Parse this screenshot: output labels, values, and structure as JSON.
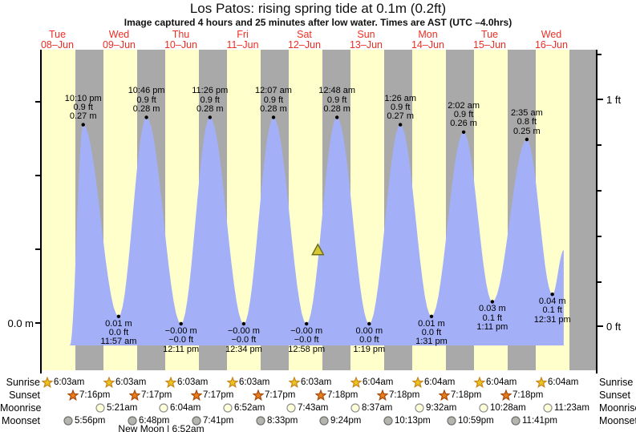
{
  "header": {
    "title": "Los Patos: rising  spring tide at 0.1m (0.2ft)",
    "subtitle": "Image captured 4 hours and 25 minutes after low water. Times are AST (UTC –4.0hrs)"
  },
  "days": [
    {
      "weekday": "Tue",
      "date": "08–Jun"
    },
    {
      "weekday": "Wed",
      "date": "09–Jun"
    },
    {
      "weekday": "Thu",
      "date": "10–Jun"
    },
    {
      "weekday": "Fri",
      "date": "11–Jun"
    },
    {
      "weekday": "Sat",
      "date": "12–Jun"
    },
    {
      "weekday": "Sun",
      "date": "13–Jun"
    },
    {
      "weekday": "Mon",
      "date": "14–Jun"
    },
    {
      "weekday": "Tue",
      "date": "15–Jun"
    },
    {
      "weekday": "Wed",
      "date": "16–Jun"
    }
  ],
  "axes": {
    "left_zero_label": "0.0 m",
    "right_one_ft": "1 ft",
    "right_zero_ft": "0 ft"
  },
  "colors": {
    "day_band": "#ffffcc",
    "night_band": "#a9a9a9",
    "tide_fill": "#a3b0f8",
    "date_text": "#ee2e24",
    "axis": "#000000",
    "sunrise_star_fill": "#e9c41c",
    "sunrise_star_stroke": "#c8831a",
    "sunset_star_fill": "#e97c17",
    "sunset_star_stroke": "#a34a0e",
    "moonrise_fill": "#ffffd8",
    "moonrise_stroke": "#8f8f8f",
    "moonset_fill": "#b5b5ad",
    "moonset_stroke": "#6f6f6f",
    "marker_fill": "#d6c832",
    "marker_stroke": "#6e6e1e"
  },
  "chart_data": {
    "type": "area",
    "title": "Los Patos: rising  spring tide at 0.1m (0.2ft)",
    "ylabel_left": "meters",
    "ylabel_right": "feet",
    "ylim_ft": [
      0,
      1
    ],
    "ylim_m_zero_label": "0.0 m",
    "day_categories": [
      "Tue 08-Jun",
      "Wed 09-Jun",
      "Thu 10-Jun",
      "Fri 11-Jun",
      "Sat 12-Jun",
      "Sun 13-Jun",
      "Mon 14-Jun",
      "Tue 15-Jun",
      "Wed 16-Jun"
    ],
    "sunrise_hour_decimal": 6.05,
    "sunset_hour_decimal": 19.28,
    "curve_start": {
      "day": 0,
      "hour": 17.0,
      "m": -0.03
    },
    "curve_end": {
      "day": 8,
      "hour": 16.93,
      "m": 0.1
    },
    "now_marker": {
      "day": 4,
      "hour": 17.38,
      "m": 0.085
    },
    "extremes": [
      {
        "kind": "high",
        "day": 0,
        "time": "10:10 pm",
        "ft": "0.9 ft",
        "m_label": "0.27 m",
        "m": 0.27
      },
      {
        "kind": "low",
        "day": 1,
        "time": "11:57 am",
        "ft": "0.0 ft",
        "m_label": "0.01 m",
        "m": 0.01
      },
      {
        "kind": "high",
        "day": 1,
        "time": "10:46 pm",
        "ft": "0.9 ft",
        "m_label": "0.28 m",
        "m": 0.28
      },
      {
        "kind": "low",
        "day": 2,
        "time": "12:11 pm",
        "ft": "−0.0 ft",
        "m_label": "−0.00 m",
        "m": 0.0
      },
      {
        "kind": "high",
        "day": 2,
        "time": "11:26 pm",
        "ft": "0.9 ft",
        "m_label": "0.28 m",
        "m": 0.28
      },
      {
        "kind": "low",
        "day": 3,
        "time": "12:34 pm",
        "ft": "−0.0 ft",
        "m_label": "−0.00 m",
        "m": 0.0
      },
      {
        "kind": "high",
        "day": 4,
        "time": "12:07 am",
        "ft": "0.9 ft",
        "m_label": "0.28 m",
        "m": 0.28
      },
      {
        "kind": "low",
        "day": 4,
        "time": "12:58 pm",
        "ft": "−0.0 ft",
        "m_label": "−0.00 m",
        "m": 0.0
      },
      {
        "kind": "high",
        "day": 5,
        "time": "12:48 am",
        "ft": "0.9 ft",
        "m_label": "0.28 m",
        "m": 0.28
      },
      {
        "kind": "low",
        "day": 5,
        "time": "1:19 pm",
        "ft": "0.0 ft",
        "m_label": "0.00 m",
        "m": 0.0
      },
      {
        "kind": "high",
        "day": 6,
        "time": "1:26 am",
        "ft": "0.9 ft",
        "m_label": "0.27 m",
        "m": 0.27
      },
      {
        "kind": "low",
        "day": 6,
        "time": "1:31 pm",
        "ft": "0.0 ft",
        "m_label": "0.01 m",
        "m": 0.01
      },
      {
        "kind": "high",
        "day": 7,
        "time": "2:02 am",
        "ft": "0.9 ft",
        "m_label": "0.26 m",
        "m": 0.26
      },
      {
        "kind": "low",
        "day": 7,
        "time": "1:11 pm",
        "ft": "0.1 ft",
        "m_label": "0.03 m",
        "m": 0.03
      },
      {
        "kind": "high",
        "day": 8,
        "time": "2:35 am",
        "ft": "0.8 ft",
        "m_label": "0.25 m",
        "m": 0.25
      },
      {
        "kind": "low",
        "day": 8,
        "time": "12:31 pm",
        "ft": "0.1 ft",
        "m_label": "0.04 m",
        "m": 0.04
      }
    ]
  },
  "astro": {
    "rows": [
      {
        "label": "Sunrise",
        "entries": [
          {
            "day": 0,
            "time": "6:03am"
          },
          {
            "day": 1,
            "time": "6:03am"
          },
          {
            "day": 2,
            "time": "6:03am"
          },
          {
            "day": 3,
            "time": "6:03am"
          },
          {
            "day": 4,
            "time": "6:03am"
          },
          {
            "day": 5,
            "time": "6:04am"
          },
          {
            "day": 6,
            "time": "6:04am"
          },
          {
            "day": 7,
            "time": "6:04am"
          },
          {
            "day": 8,
            "time": "6:04am"
          }
        ]
      },
      {
        "label": "Sunset",
        "entries": [
          {
            "day": 0,
            "time": "7:16pm"
          },
          {
            "day": 1,
            "time": "7:17pm"
          },
          {
            "day": 2,
            "time": "7:17pm"
          },
          {
            "day": 3,
            "time": "7:17pm"
          },
          {
            "day": 4,
            "time": "7:18pm"
          },
          {
            "day": 5,
            "time": "7:18pm"
          },
          {
            "day": 6,
            "time": "7:18pm"
          },
          {
            "day": 7,
            "time": "7:18pm"
          }
        ]
      },
      {
        "label": "Moonrise",
        "entries": [
          {
            "day": 1,
            "time": "5:21am"
          },
          {
            "day": 2,
            "time": "6:04am"
          },
          {
            "day": 3,
            "time": "6:52am"
          },
          {
            "day": 4,
            "time": "7:43am"
          },
          {
            "day": 5,
            "time": "8:37am"
          },
          {
            "day": 6,
            "time": "9:32am"
          },
          {
            "day": 7,
            "time": "10:28am"
          },
          {
            "day": 8,
            "time": "11:23am"
          }
        ]
      },
      {
        "label": "Moonset",
        "entries": [
          {
            "day": 0,
            "time": "5:56pm"
          },
          {
            "day": 1,
            "time": "6:48pm"
          },
          {
            "day": 2,
            "time": "7:41pm"
          },
          {
            "day": 3,
            "time": "8:33pm"
          },
          {
            "day": 4,
            "time": "9:24pm"
          },
          {
            "day": 5,
            "time": "10:13pm"
          },
          {
            "day": 6,
            "time": "10:59pm"
          },
          {
            "day": 7,
            "time": "11:41pm"
          }
        ]
      }
    ],
    "new_moon": "New Moon | 6:52am"
  }
}
